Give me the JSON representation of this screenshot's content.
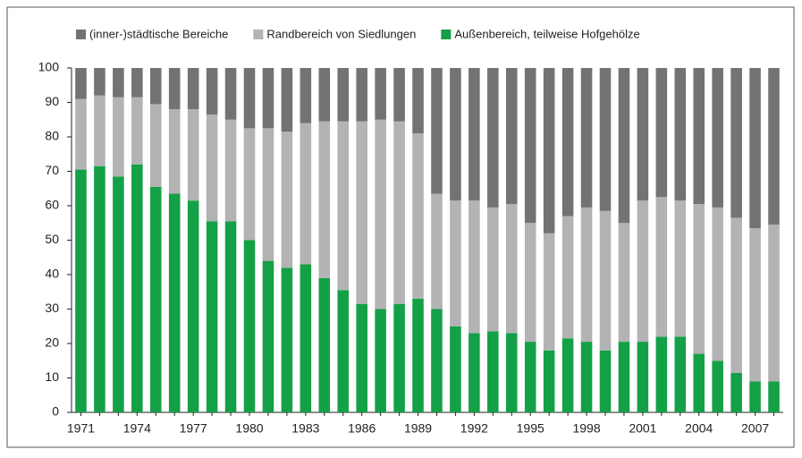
{
  "chart_data": {
    "type": "stacked_bar",
    "categories": [
      "1971",
      null,
      null,
      "1974",
      null,
      null,
      "1977",
      null,
      null,
      "1980",
      null,
      null,
      "1983",
      null,
      null,
      "1986",
      null,
      null,
      "1989",
      null,
      null,
      "1992",
      null,
      null,
      "1995",
      null,
      null,
      "1998",
      null,
      null,
      "2001",
      null,
      null,
      "2004",
      null,
      null,
      "2007",
      null
    ],
    "series": [
      {
        "name": "(inner-)städtische Bereiche",
        "color": "#737373",
        "values": [
          9,
          8,
          8.5,
          8.5,
          10.5,
          12,
          12,
          13.5,
          15,
          17.5,
          17.5,
          18.5,
          16,
          15.5,
          15.5,
          15.5,
          15,
          15.5,
          19,
          36.5,
          38.5,
          38.5,
          40.5,
          39.5,
          45,
          48,
          43,
          40.5,
          41.5,
          45,
          38.5,
          37.5,
          38.5,
          39.5,
          40.5,
          43.5,
          46.5,
          45.5
        ]
      },
      {
        "name": "Randbereich von Siedlungen",
        "color": "#b3b3b3",
        "values": [
          20.5,
          20.5,
          23,
          19.5,
          24,
          24.5,
          26.5,
          31,
          29.5,
          32.5,
          38.5,
          39.5,
          41,
          45.5,
          49,
          53,
          55,
          53,
          48,
          33.5,
          36.5,
          38.5,
          36,
          37.5,
          34.5,
          34,
          35.5,
          39,
          40.5,
          34.5,
          41,
          40.5,
          39.5,
          43.5,
          44.5,
          45,
          44.5,
          45.5
        ]
      },
      {
        "name": "Außenbereich, teilweise Hofgehölze",
        "color": "#14a046",
        "values": [
          70.5,
          71.5,
          68.5,
          72,
          65.5,
          63.5,
          61.5,
          55.5,
          55.5,
          50,
          44,
          42,
          43,
          39,
          35.5,
          31.5,
          30,
          31.5,
          33,
          30,
          25,
          23,
          23.5,
          23,
          20.5,
          18,
          21.5,
          20.5,
          18,
          20.5,
          20.5,
          22,
          22,
          17,
          15,
          11.5,
          9,
          9
        ]
      }
    ],
    "ylim": [
      0,
      100
    ],
    "yticks": [
      0,
      10,
      20,
      30,
      40,
      50,
      60,
      70,
      80,
      90,
      100
    ],
    "legend": "top"
  }
}
